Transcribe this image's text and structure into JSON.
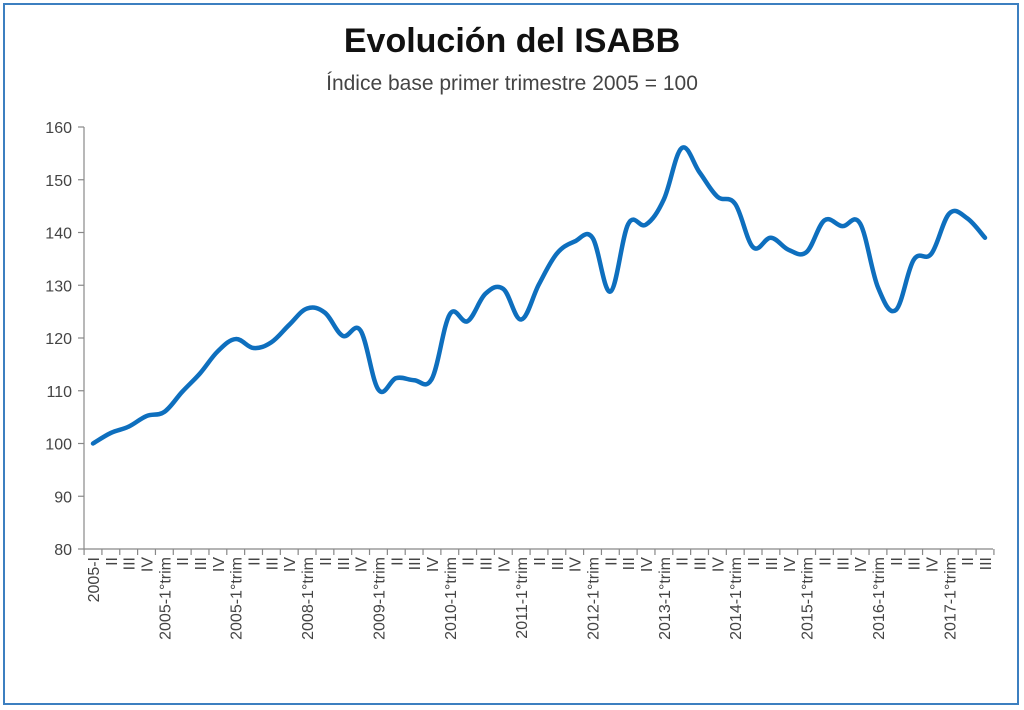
{
  "chart_data": {
    "type": "line",
    "title": "Evolución del ISABB",
    "subtitle": "Índice base primer trimestre  2005 = 100",
    "xlabel": "",
    "ylabel": "",
    "ylim": [
      80,
      160
    ],
    "yticks": [
      80,
      90,
      100,
      110,
      120,
      130,
      140,
      150,
      160
    ],
    "grid": false,
    "color": "#0e6fbe",
    "categories": [
      "2005-I",
      "II",
      "III",
      "IV",
      "2005-1°trim",
      "II",
      "III",
      "IV",
      "2005-1°trim",
      "II",
      "III",
      "IV",
      "2008-1°trim",
      "II",
      "III",
      "IV",
      "2009-1°trim",
      "II",
      "III",
      "IV",
      "2010-1°trim",
      "II",
      "III",
      "IV",
      "2011-1°trim",
      "II",
      "III",
      "IV",
      "2012-1°trim",
      "II",
      "III",
      "IV",
      "2013-1°trim",
      "II",
      "III",
      "IV",
      "2014-1°trim",
      "II",
      "III",
      "IV",
      "2015-1°trim",
      "II",
      "III",
      "IV",
      "2016-1°trim",
      "II",
      "III",
      "IV",
      "2017-1°trim",
      "II",
      "III"
    ],
    "series": [
      {
        "values": [
          100.0,
          102.0,
          103.2,
          105.2,
          106.0,
          109.8,
          113.3,
          117.5,
          119.8,
          118.1,
          119.2,
          122.5,
          125.6,
          124.8,
          120.4,
          121.4,
          110.2,
          112.4,
          112.0,
          112.3,
          124.5,
          123.2,
          128.4,
          129.3,
          123.5,
          130.2,
          136.0,
          138.3,
          139.0,
          128.8,
          141.6,
          141.5,
          146.3,
          156.0,
          151.4,
          146.8,
          145.4,
          137.2,
          139.0,
          136.7,
          136.3,
          142.3,
          141.2,
          141.7,
          129.6,
          125.3,
          134.8,
          136.0,
          143.6,
          142.7,
          139.0
        ]
      }
    ]
  }
}
